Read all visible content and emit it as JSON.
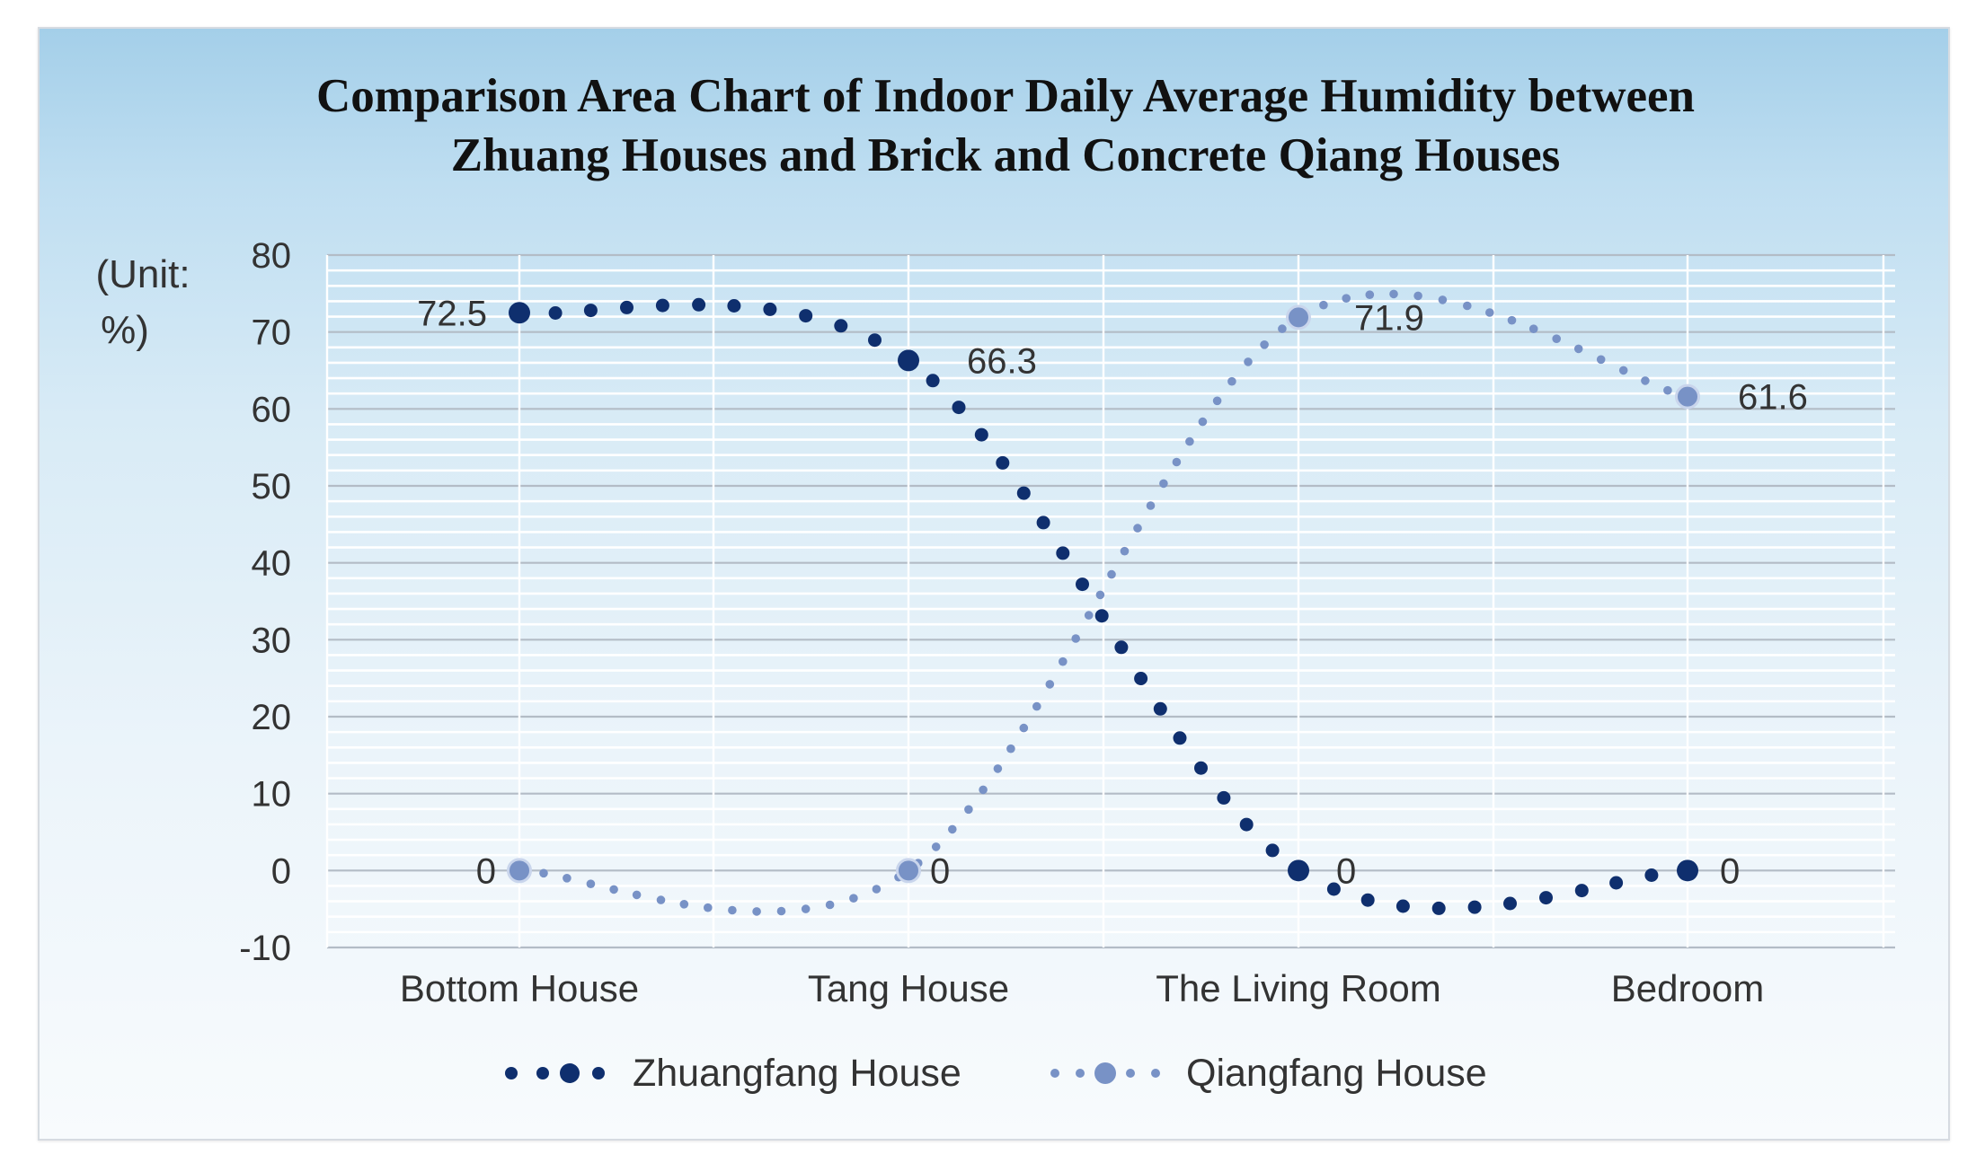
{
  "chart_data": {
    "type": "line",
    "title": [
      "Comparison Area Chart of Indoor Daily  Average Humidity  between",
      "Zhuang Houses and Brick and Concrete Qiang Houses"
    ],
    "unit_label": [
      "(Unit:",
      "%)"
    ],
    "categories": [
      "Bottom House",
      "Tang House",
      "The Living Room",
      "Bedroom"
    ],
    "ylim": [
      -10,
      80
    ],
    "yticks": [
      80,
      70,
      60,
      50,
      40,
      30,
      20,
      10,
      0,
      -10
    ],
    "grid": true,
    "legend_position": "bottom",
    "series": [
      {
        "name": "Zhuangfang House",
        "values": [
          72.5,
          66.3,
          0,
          0
        ],
        "labels": [
          "72.5",
          "66.3",
          "0",
          "0"
        ],
        "color": "#0f2f6e"
      },
      {
        "name": "Qiangfang House",
        "values": [
          0,
          0,
          71.9,
          61.6
        ],
        "labels": [
          "0",
          "0",
          "71.9",
          "61.6"
        ],
        "color": "#7892c6"
      }
    ]
  }
}
